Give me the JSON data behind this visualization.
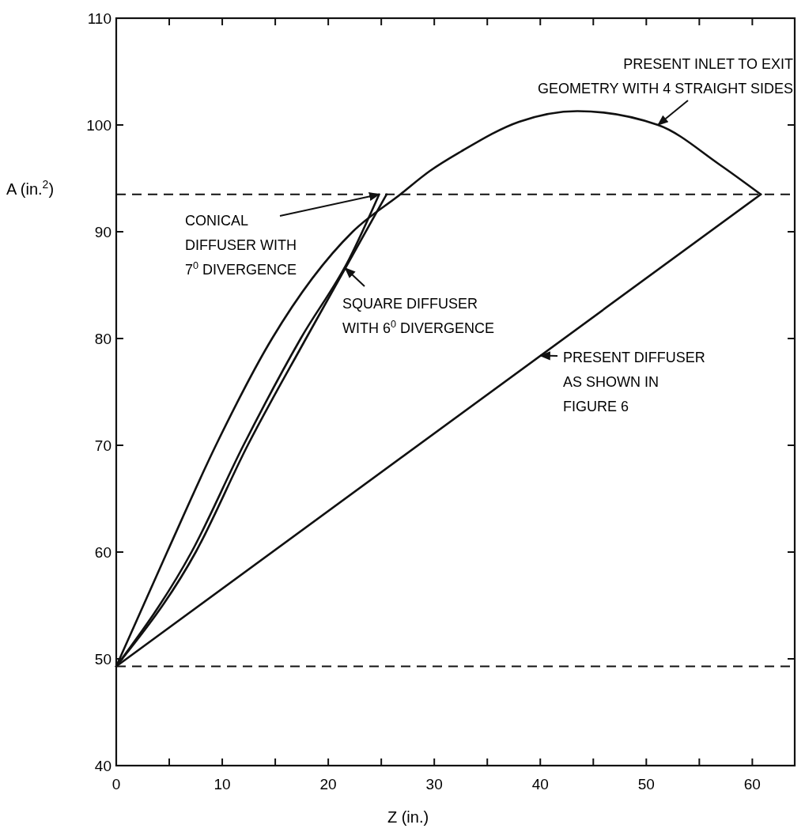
{
  "chart_data": {
    "type": "line",
    "xlabel": "Z (in.)",
    "ylabel": "A (in.$^{2}$)",
    "xlim": [
      0,
      64
    ],
    "ylim": [
      40,
      110
    ],
    "xticks": [
      0,
      {
        "value": 5,
        "label": null
      },
      10,
      {
        "value": 15,
        "label": null
      },
      20,
      {
        "value": 25,
        "label": null
      },
      30,
      {
        "value": 35,
        "label": null
      },
      40,
      {
        "value": 45,
        "label": null
      },
      50,
      {
        "value": 55,
        "label": null
      },
      60
    ],
    "yticks": [
      40,
      50,
      60,
      70,
      80,
      90,
      100,
      110
    ],
    "grid": false,
    "marker": "none",
    "line_style": "solid",
    "series": [
      {
        "color": "#111111",
        "x": [
          0,
          4.8,
          9.4,
          14.7,
          22.3,
          26.8,
          29.6,
          32.5,
          38,
          43.5,
          51.1,
          56.9,
          60.8
        ],
        "values": [
          49.3,
          60,
          70,
          80,
          90,
          93.5,
          95.7,
          97.5,
          100.3,
          101.3,
          100,
          96.3,
          93.5
        ]
      },
      {
        "color": "#111111",
        "x": [
          0,
          7.1,
          12,
          17.4,
          22,
          24.8
        ],
        "values": [
          49.3,
          60,
          70,
          80,
          87.5,
          93.5
        ]
      },
      {
        "color": "#111111",
        "x": [
          0,
          7.5,
          12.4,
          17.9,
          25.5
        ],
        "values": [
          49.3,
          60,
          70,
          80,
          93.5
        ]
      },
      {
        "color": "#111111",
        "x": [
          0,
          60.8
        ],
        "values": [
          49.3,
          93.5
        ]
      }
    ],
    "ref_lines": [
      {
        "axis": "y",
        "value": 93.5,
        "line_style": "dashed",
        "color": "#111111"
      },
      {
        "axis": "y",
        "value": 49.3,
        "line_style": "dashed",
        "color": "#111111"
      }
    ],
    "annotations": [
      {
        "text": "PRESENT INLET TO EXIT\nGEOMETRY WITH 4 STRAIGHT SIDES",
        "x": 51.1,
        "y": 100
      },
      {
        "text": "CONICAL\nDIFFUSER WITH\n7$^{0}$ DIVERGENCE",
        "x": 24.8,
        "y": 93.5
      },
      {
        "text": "SQUARE DIFFUSER\nWITH 6$^{0}$ DIVERGENCE",
        "x": 21.6,
        "y": 86.6
      },
      {
        "text": "PRESENT DIFFUSER\nAS SHOWN IN\nFIGURE 6",
        "x": 40,
        "y": 78.4
      }
    ]
  }
}
